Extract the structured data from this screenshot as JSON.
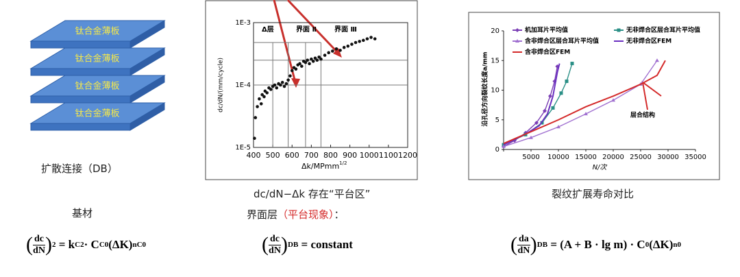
{
  "diagram": {
    "plates": [
      "钛合金薄板",
      "钛合金薄板",
      "钛合金薄板",
      "钛合金薄板"
    ],
    "caption": "扩散连接（DB）"
  },
  "chart_data": [
    {
      "type": "scatter",
      "caption": "dc/dN−Δk 存在“平台区”",
      "x_label": "Δk/MPmm",
      "x_label_sup": "1/2",
      "y_label": "dc/dN/(mm/cycle)",
      "log_y": true,
      "color": "#111111",
      "annotations": [
        "Δ层",
        "界面 Ⅱ",
        "界面 Ⅲ"
      ],
      "ref_x": [
        500,
        580,
        670,
        750
      ],
      "ref_y": [
        0.00025,
        0.0001
      ],
      "xlim": [
        400,
        1200
      ],
      "xticks": [
        400,
        500,
        600,
        700,
        800,
        900,
        1000,
        1100,
        1200
      ],
      "ylim": [
        1e-05,
        0.001
      ],
      "yticks": [
        {
          "value": 1e-05,
          "label": "1E-5"
        },
        {
          "value": 0.0001,
          "label": "1E-4"
        },
        {
          "value": 0.001,
          "label": "1E-3"
        }
      ],
      "x": [
        405,
        410,
        420,
        430,
        440,
        445,
        455,
        460,
        470,
        480,
        490,
        500,
        510,
        520,
        530,
        540,
        550,
        560,
        570,
        580,
        590,
        600,
        610,
        620,
        630,
        640,
        650,
        660,
        670,
        680,
        690,
        700,
        710,
        720,
        730,
        740,
        750,
        770,
        790,
        810,
        830,
        850,
        870,
        890,
        910,
        930,
        950,
        970,
        990,
        1010,
        1030
      ],
      "values": [
        1.4e-05,
        3e-05,
        4.5e-05,
        6e-05,
        5e-05,
        7e-05,
        6.5e-05,
        8e-05,
        7.5e-05,
        9e-05,
        8.5e-05,
        9.5e-05,
        0.0001,
        9e-05,
        0.000105,
        0.0001,
        0.00011,
        9.5e-05,
        0.000105,
        0.00012,
        0.00014,
        0.00017,
        0.00019,
        0.00018,
        0.00021,
        0.00022,
        0.0002,
        0.00024,
        0.00023,
        0.00025,
        0.00022,
        0.00026,
        0.00024,
        0.00027,
        0.00025,
        0.00028,
        0.00026,
        0.0003,
        0.00033,
        0.00035,
        0.00038,
        0.00036,
        0.0004,
        0.00042,
        0.00045,
        0.00048,
        0.0005,
        0.00052,
        0.00055,
        0.00058,
        0.00055
      ]
    },
    {
      "type": "line",
      "caption": "裂纹扩展寿命对比",
      "x_label": "N/次",
      "y_label": "沿孔径方向裂纹长度a/mm",
      "annotation": "层合结构",
      "xlim": [
        0,
        35000
      ],
      "xticks": [
        0,
        5000,
        10000,
        15000,
        20000,
        25000,
        30000,
        35000
      ],
      "ylim": [
        0,
        20
      ],
      "yticks": [
        0,
        5,
        10,
        15,
        20
      ],
      "series": [
        {
          "name": "机加耳片平均值",
          "color": "#7b3fb5",
          "marker": "diamond",
          "x": [
            0,
            2000,
            4000,
            6000,
            7500,
            8500,
            9300,
            9800
          ],
          "values": [
            0.5,
            1.5,
            2.8,
            4.5,
            6.5,
            9,
            11.5,
            14
          ]
        },
        {
          "name": "无非焊合区层合耳片平均值",
          "color": "#2a8f86",
          "marker": "square",
          "x": [
            0,
            4000,
            7000,
            9000,
            10500,
            11500,
            12500
          ],
          "values": [
            0.8,
            2.5,
            4.5,
            7,
            9.5,
            11.5,
            14.5
          ]
        },
        {
          "name": "含非焊合区层合耳片平均值",
          "color": "#a070d0",
          "marker": "triangle",
          "x": [
            0,
            5000,
            10000,
            15000,
            20000,
            25000,
            28000
          ],
          "values": [
            0.5,
            2,
            3.8,
            6,
            8.3,
            11,
            15
          ]
        },
        {
          "name": "无非焊合区FEM",
          "color": "#6a2fc0",
          "marker": "none",
          "x": [
            0,
            4000,
            6500,
            8000,
            9000,
            9800,
            10200
          ],
          "values": [
            0.8,
            2.6,
            4,
            6,
            9,
            13,
            14.5
          ]
        },
        {
          "name": "含非焊合区FEM",
          "color": "#d42a2a",
          "marker": "none",
          "x": [
            0,
            5000,
            10000,
            15000,
            20000,
            25000,
            28000,
            29500
          ],
          "values": [
            1,
            3,
            5,
            7.2,
            9,
            11,
            12.5,
            15
          ]
        }
      ]
    }
  ],
  "labels": {
    "base": "基材",
    "interface": "界面层",
    "interface_note": "（平台现象）",
    "interface_colon": "："
  },
  "formulas": [
    {
      "num": "dc",
      "den": "dN",
      "sub": "2",
      "rhs": [
        "= k",
        "C2",
        " · C",
        "C0",
        "(ΔK)",
        "nC0"
      ]
    },
    {
      "num": "dc",
      "den": "dN",
      "sub": "DB",
      "rhs": [
        "= constant"
      ]
    },
    {
      "num": "da",
      "den": "dN",
      "sub": "DB",
      "rhs": [
        "= (A + B · lg m) · C",
        "0",
        " (ΔK)",
        "n0"
      ]
    }
  ]
}
